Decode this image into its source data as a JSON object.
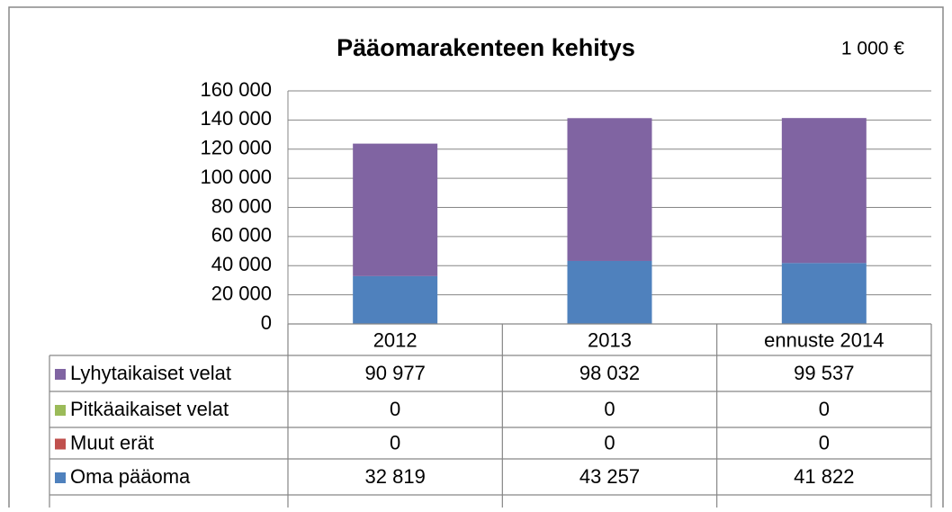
{
  "chart_data": {
    "type": "bar",
    "stacked": true,
    "title": "Pääomarakenteen kehitys",
    "subtitle": "1 000 €",
    "categories": [
      "2012",
      "2013",
      "ennuste 2014"
    ],
    "series": [
      {
        "name": "Lyhytaikaiset velat",
        "color": "#8064a2",
        "values": [
          90977,
          98032,
          99537
        ],
        "value_labels": [
          "90 977",
          "98 032",
          "99 537"
        ]
      },
      {
        "name": "Pitkäaikaiset velat",
        "color": "#9bbb59",
        "values": [
          0,
          0,
          0
        ],
        "value_labels": [
          "0",
          "0",
          "0"
        ]
      },
      {
        "name": "Muut erät",
        "color": "#c0504d",
        "values": [
          0,
          0,
          0
        ],
        "value_labels": [
          "0",
          "0",
          "0"
        ]
      },
      {
        "name": "Oma pääoma",
        "color": "#4f81bd",
        "values": [
          32819,
          43257,
          41822
        ],
        "value_labels": [
          "32 819",
          "43 257",
          "41 822"
        ]
      }
    ],
    "ylim": [
      0,
      160000
    ],
    "yticks": [
      0,
      {
        "value": 20000,
        "label": "20 000"
      },
      {
        "value": 40000,
        "label": "40 000"
      },
      {
        "value": 60000,
        "label": "60 000"
      },
      {
        "value": 80000,
        "label": "80 000"
      },
      {
        "value": 100000,
        "label": "100 000"
      },
      {
        "value": 120000,
        "label": "120 000"
      },
      {
        "value": 140000,
        "label": "140 000"
      },
      {
        "value": 160000,
        "label": "160 000"
      }
    ],
    "grid": true
  }
}
